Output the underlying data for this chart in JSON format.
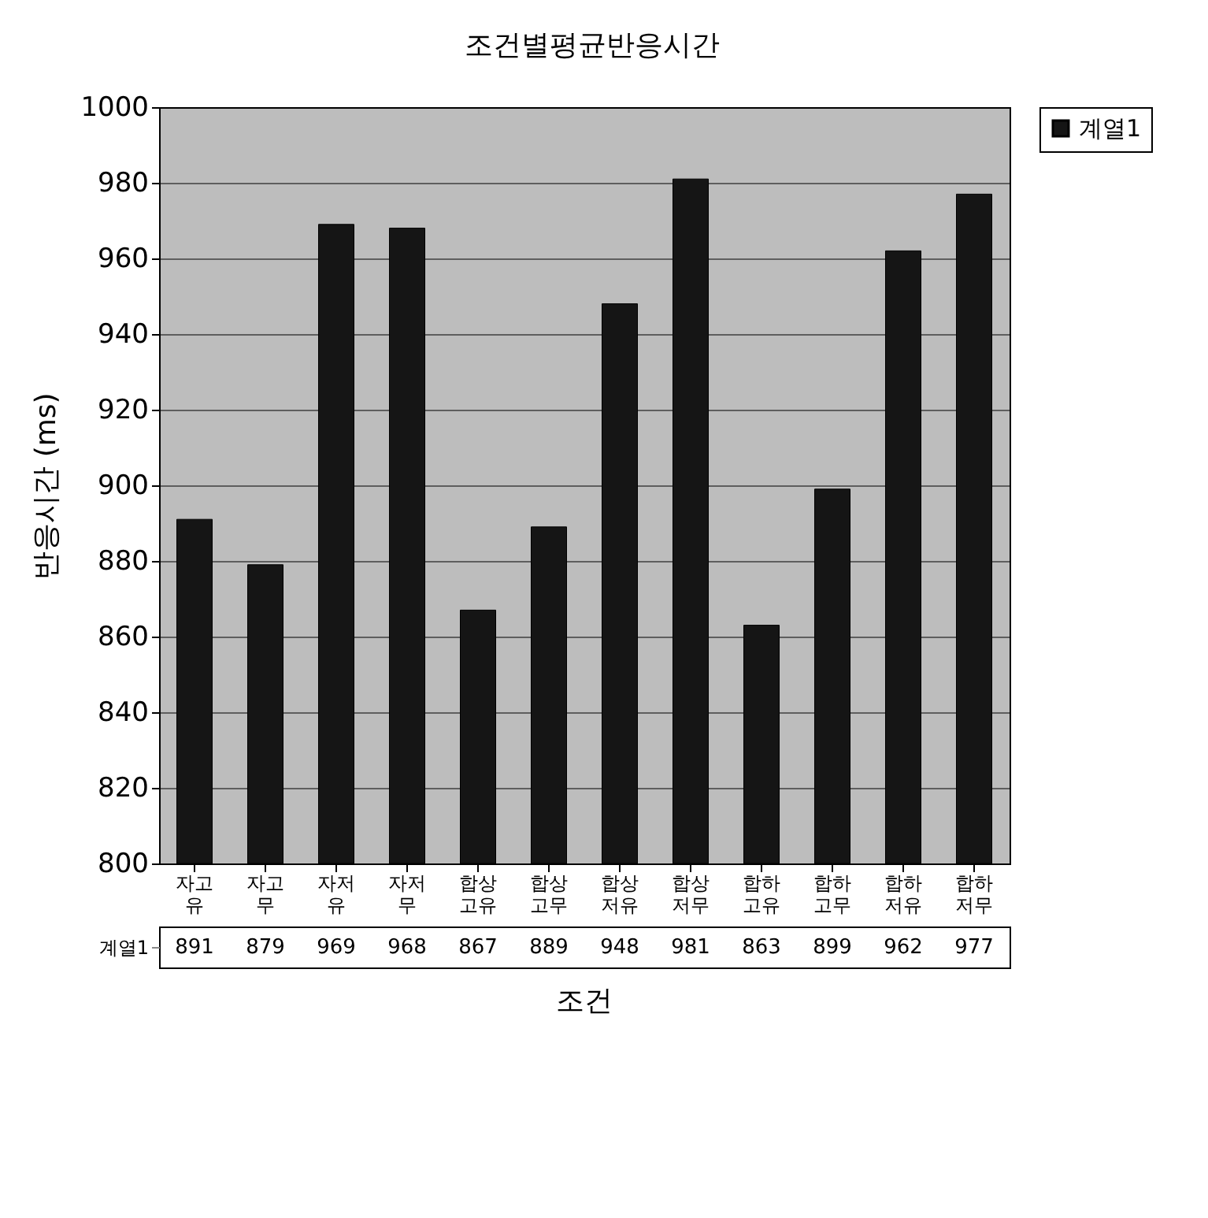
{
  "chart_data": {
    "type": "bar",
    "title": "조건별평균반응시간",
    "xlabel": "조건",
    "ylabel": "반응시간 (ms)",
    "categories": [
      "자고유",
      "자고무",
      "자저유",
      "자저무",
      "합상고유",
      "합상고무",
      "합상저유",
      "합상저무",
      "합하고유",
      "합하고무",
      "합하저유",
      "합하저무"
    ],
    "series": [
      {
        "name": "계열1",
        "color": "#151515",
        "values": [
          891,
          879,
          969,
          968,
          867,
          889,
          948,
          981,
          863,
          899,
          962,
          977
        ]
      }
    ],
    "ylim": [
      800,
      1000
    ],
    "yticks": [
      800,
      820,
      840,
      860,
      880,
      900,
      920,
      940,
      960,
      980,
      1000
    ],
    "grid": "y",
    "legend": "right",
    "data_labels": true
  }
}
